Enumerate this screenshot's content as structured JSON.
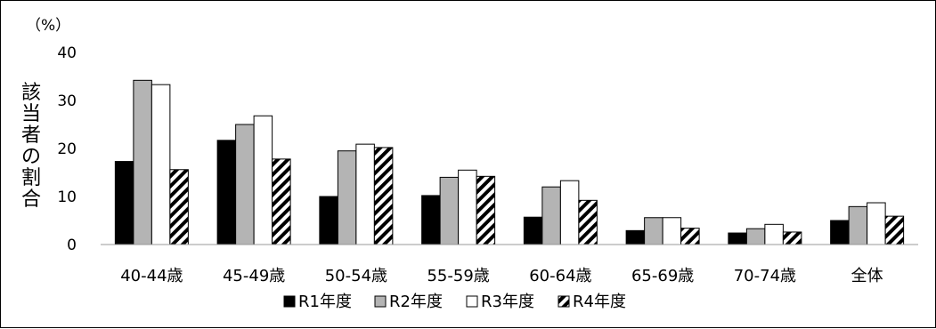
{
  "chart_data": {
    "type": "bar",
    "unit_label": "（%）",
    "ylabel": "該当者の割合",
    "ylim": [
      0,
      40
    ],
    "yticks": [
      0,
      10,
      20,
      30,
      40
    ],
    "categories": [
      "40-44歳",
      "45-49歳",
      "50-54歳",
      "55-59歳",
      "60-64歳",
      "65-69歳",
      "70-74歳",
      "全体"
    ],
    "series": [
      {
        "name": "R1年度",
        "fill": "#000000",
        "pattern": "solid",
        "values": [
          17.3,
          21.7,
          10.0,
          10.2,
          5.7,
          2.9,
          2.4,
          5.0
        ]
      },
      {
        "name": "R2年度",
        "fill": "#b4b4b4",
        "pattern": "solid",
        "values": [
          34.2,
          25.0,
          19.5,
          14.0,
          12.0,
          5.6,
          3.3,
          7.9
        ]
      },
      {
        "name": "R3年度",
        "fill": "#ffffff",
        "pattern": "solid",
        "values": [
          33.3,
          26.8,
          20.9,
          15.5,
          13.3,
          5.6,
          4.2,
          8.7
        ]
      },
      {
        "name": "R4年度",
        "fill": "#000000",
        "pattern": "diagonal-stripes",
        "values": [
          15.6,
          17.8,
          20.2,
          14.2,
          9.2,
          3.4,
          2.6,
          5.9
        ]
      }
    ],
    "grid": false,
    "legend_position": "bottom"
  }
}
